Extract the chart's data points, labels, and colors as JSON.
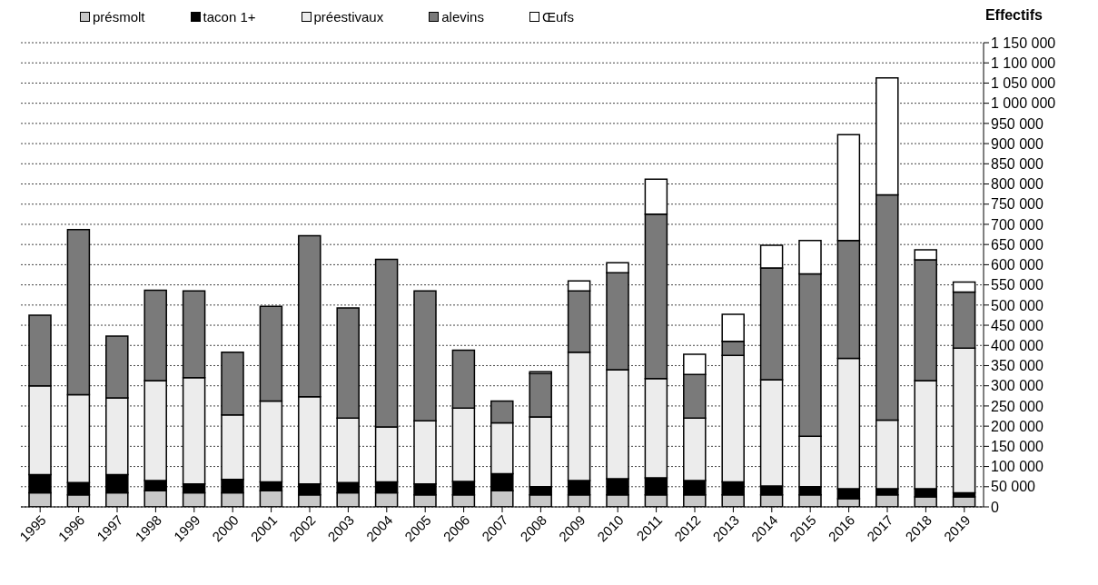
{
  "chart_data": {
    "type": "bar",
    "stacked": true,
    "ylabel": "Effectifs",
    "categories": [
      "1995",
      "1996",
      "1997",
      "1998",
      "1999",
      "2000",
      "2001",
      "2002",
      "2003",
      "2004",
      "2005",
      "2006",
      "2007",
      "2008",
      "2009",
      "2010",
      "2011",
      "2012",
      "2013",
      "2014",
      "2015",
      "2016",
      "2017",
      "2018",
      "2019"
    ],
    "series": [
      {
        "name": "présmolt",
        "color": "#c8c8c8",
        "values": [
          35000,
          30000,
          35000,
          40000,
          35000,
          35000,
          40000,
          30000,
          35000,
          35000,
          30000,
          30000,
          40000,
          30000,
          30000,
          30000,
          30000,
          30000,
          30000,
          30000,
          30000,
          20000,
          30000,
          25000,
          25000
        ]
      },
      {
        "name": "tacon 1+",
        "color": "#000000",
        "values": [
          45000,
          30000,
          45000,
          25000,
          22000,
          33000,
          22000,
          27000,
          25000,
          27000,
          27000,
          33000,
          42000,
          20000,
          35000,
          40000,
          42000,
          35000,
          32000,
          22000,
          20000,
          25000,
          15000,
          20000,
          10000
        ]
      },
      {
        "name": "préestivaux",
        "color": "#ececec",
        "values": [
          220000,
          218000,
          190000,
          248000,
          263000,
          160000,
          200000,
          216000,
          160000,
          136000,
          156000,
          182000,
          126000,
          173000,
          318000,
          270000,
          246000,
          155000,
          313000,
          263000,
          125000,
          323000,
          170000,
          268000,
          358000
        ]
      },
      {
        "name": "alevins",
        "color": "#7a7a7a",
        "values": [
          175000,
          409000,
          153000,
          224000,
          215000,
          155000,
          235000,
          399000,
          273000,
          415000,
          322000,
          143000,
          54000,
          107000,
          152000,
          240000,
          407000,
          108000,
          35000,
          277000,
          402000,
          292000,
          558000,
          299000,
          139000
        ]
      },
      {
        "name": "Œufs",
        "color": "#ffffff",
        "values": [
          null,
          null,
          null,
          null,
          null,
          null,
          null,
          null,
          null,
          null,
          null,
          null,
          null,
          5000,
          25000,
          25000,
          87000,
          50000,
          67000,
          56000,
          83000,
          262000,
          290000,
          25000,
          25000
        ]
      }
    ],
    "ylim": [
      0,
      1150000
    ],
    "yticks": [
      0,
      {
        "value": 50000,
        "label": "50 000"
      },
      {
        "value": 100000,
        "label": "100 000"
      },
      {
        "value": 150000,
        "label": "150 000"
      },
      {
        "value": 200000,
        "label": "200 000"
      },
      {
        "value": 250000,
        "label": "250 000"
      },
      {
        "value": 300000,
        "label": "300 000"
      },
      {
        "value": 350000,
        "label": "350 000"
      },
      {
        "value": 400000,
        "label": "400 000"
      },
      {
        "value": 450000,
        "label": "450 000"
      },
      {
        "value": 500000,
        "label": "500 000"
      },
      {
        "value": 550000,
        "label": "550 000"
      },
      {
        "value": 600000,
        "label": "600 000"
      },
      {
        "value": 650000,
        "label": "650 000"
      },
      {
        "value": 700000,
        "label": "700 000"
      },
      {
        "value": 750000,
        "label": "750 000"
      },
      {
        "value": 800000,
        "label": "800 000"
      },
      {
        "value": 850000,
        "label": "850 000"
      },
      {
        "value": 900000,
        "label": "900 000"
      },
      {
        "value": 950000,
        "label": "950 000"
      },
      {
        "value": 1000000,
        "label": "1 000 000"
      },
      {
        "value": 1050000,
        "label": "1 050 000"
      },
      {
        "value": 1100000,
        "label": "1 100 000"
      },
      {
        "value": 1150000,
        "label": "1 150 000"
      }
    ],
    "grid": "y",
    "legend": "top left"
  }
}
